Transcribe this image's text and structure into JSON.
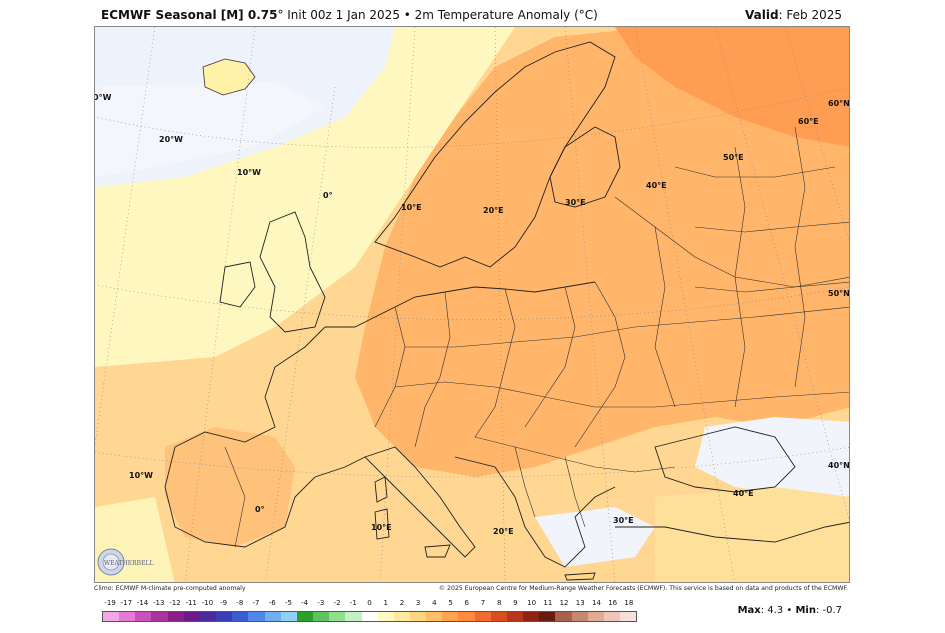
{
  "header": {
    "title_bold": "ECMWF Seasonal [M] 0.75",
    "title_rest": "° Init 00z 1 Jan 2025 • 2m Temperature Anomaly (°C)",
    "valid_label": "Valid",
    "valid_value": ": Feb 2025"
  },
  "map": {
    "graticule_labels": [
      {
        "text": "0°W",
        "id": "lon-0w-nw"
      },
      {
        "text": "20°W",
        "id": "lon-20w"
      },
      {
        "text": "10°W",
        "id": "lon-10w-n"
      },
      {
        "text": "0°",
        "id": "lon-0"
      },
      {
        "text": "10°E",
        "id": "lon-10e-n"
      },
      {
        "text": "20°E",
        "id": "lon-20e-n"
      },
      {
        "text": "30°E",
        "id": "lon-30e-n"
      },
      {
        "text": "40°E",
        "id": "lon-40e-n"
      },
      {
        "text": "50°E",
        "id": "lon-50e"
      },
      {
        "text": "60°E",
        "id": "lon-60e"
      },
      {
        "text": "60°N",
        "id": "lat-60n"
      },
      {
        "text": "50°N",
        "id": "lat-50n"
      },
      {
        "text": "40°N",
        "id": "lat-40n"
      },
      {
        "text": "10°W",
        "id": "lon-10w-s"
      },
      {
        "text": "0°",
        "id": "lon-0-s"
      },
      {
        "text": "10°E",
        "id": "lon-10e-s"
      },
      {
        "text": "20°E",
        "id": "lon-20e-s"
      },
      {
        "text": "30°E",
        "id": "lon-30e-s"
      },
      {
        "text": "40°E",
        "id": "lon-40e-s"
      }
    ],
    "logo_text": "WEATHERBELL"
  },
  "footer": {
    "climo": "Climo: ECMWF M-climate pre-computed anomaly",
    "copyright": "© 2025 European Centre for Medium-Range Weather Forecasts (ECMWF). This service is based on data and products of the ECMWF."
  },
  "legend": {
    "ticks": [
      "-19",
      "-17",
      "-14",
      "-13",
      "-12",
      "-11",
      "-10",
      "-9",
      "-8",
      "-7",
      "-6",
      "-5",
      "-4",
      "-3",
      "-2",
      "-1",
      "0",
      "1",
      "2",
      "3",
      "4",
      "5",
      "6",
      "7",
      "8",
      "9",
      "10",
      "11",
      "12",
      "13",
      "14",
      "16",
      "18"
    ],
    "colors": [
      "#f5a6e6",
      "#e67ad6",
      "#cc4fbf",
      "#a8339f",
      "#8a1f8a",
      "#6b1a8a",
      "#4b2a9c",
      "#3a3fb5",
      "#3a5fd0",
      "#4f86e8",
      "#6fb0f2",
      "#8fd0f7",
      "#2aa02a",
      "#5cc45c",
      "#8ee08e",
      "#c4f0c4",
      "#ffffff",
      "#fff9c4",
      "#ffe9a0",
      "#ffd580",
      "#ffbf66",
      "#ffa34d",
      "#ff8a3d",
      "#f06b2e",
      "#d94e1f",
      "#b8371a",
      "#8f2414",
      "#6b1a12",
      "#a8624a",
      "#c78870",
      "#e0aa94",
      "#efc6b8",
      "#f7e0d8"
    ],
    "max_label": "Max",
    "max_value": ": 4.3 • ",
    "min_label": "Min",
    "min_value": ": -0.7"
  }
}
